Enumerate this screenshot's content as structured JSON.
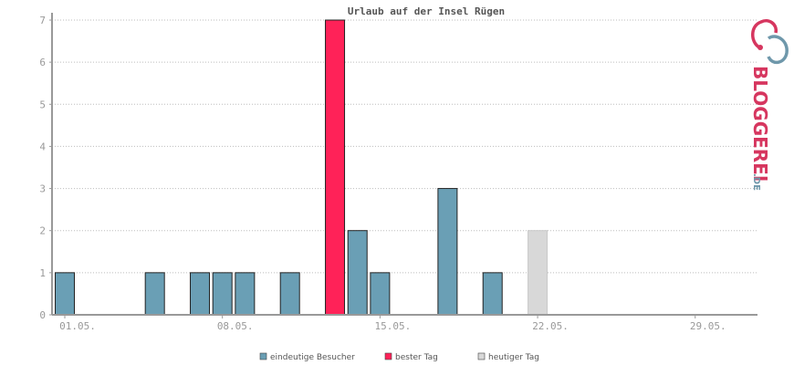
{
  "chart_data": {
    "type": "bar",
    "title": "Urlaub auf der Insel Rügen",
    "xlabel": "",
    "ylabel": "",
    "ylim": [
      0,
      7
    ],
    "yticks": [
      "0",
      "1",
      "2",
      "3",
      "4",
      "5",
      "6",
      "7"
    ],
    "xticks": [
      "01.05.",
      "08.05.",
      "15.05.",
      "22.05.",
      "29.05."
    ],
    "grid": true,
    "legend_position": "bottom",
    "days": [
      1,
      5,
      7,
      8,
      9,
      11,
      13,
      14,
      15,
      18,
      20,
      22
    ],
    "values": [
      1,
      1,
      1,
      1,
      1,
      1,
      7,
      2,
      1,
      3,
      1,
      2
    ],
    "kinds": [
      "eindeutige Besucher",
      "eindeutige Besucher",
      "eindeutige Besucher",
      "eindeutige Besucher",
      "eindeutige Besucher",
      "eindeutige Besucher",
      "bester Tag",
      "eindeutige Besucher",
      "eindeutige Besucher",
      "eindeutige Besucher",
      "eindeutige Besucher",
      "heutiger Tag"
    ],
    "series": [
      {
        "name": "eindeutige Besucher",
        "color": "#6a9fb5"
      },
      {
        "name": "bester Tag",
        "color": "#ff2258"
      },
      {
        "name": "heutiger Tag",
        "color": "#d8d8d8"
      }
    ]
  },
  "logo": {
    "text": "BLOGGEREI",
    "suffix": ".DE",
    "colors": {
      "pink": "#d6365f",
      "blue": "#6f98ab"
    }
  }
}
